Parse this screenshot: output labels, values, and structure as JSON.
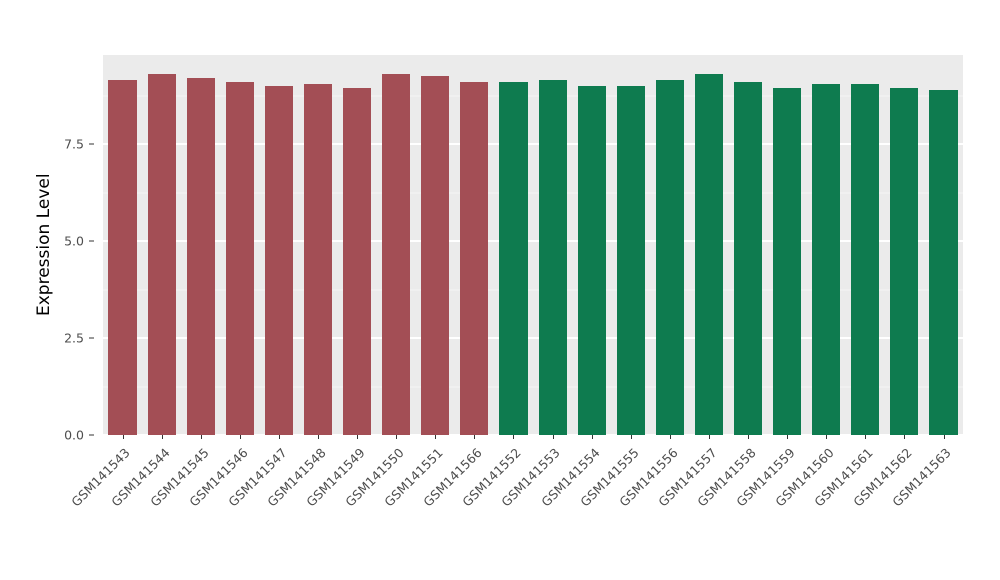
{
  "chart_data": {
    "type": "bar",
    "title": "",
    "xlabel": "",
    "ylabel": "Expression Level",
    "ylim": [
      0,
      9.8
    ],
    "yticks": [
      0.0,
      2.5,
      5.0,
      7.5
    ],
    "ytick_labels": [
      "0.0",
      "2.5",
      "5.0",
      "7.5"
    ],
    "minor_gridlines": [
      1.25,
      3.75,
      6.25,
      8.75
    ],
    "grid": "on",
    "legend": "none",
    "categories": [
      "GSM141543",
      "GSM141544",
      "GSM141545",
      "GSM141546",
      "GSM141547",
      "GSM141548",
      "GSM141549",
      "GSM141550",
      "GSM141551",
      "GSM141566",
      "GSM141552",
      "GSM141553",
      "GSM141554",
      "GSM141555",
      "GSM141556",
      "GSM141557",
      "GSM141558",
      "GSM141559",
      "GSM141560",
      "GSM141561",
      "GSM141562",
      "GSM141563"
    ],
    "values": [
      9.15,
      9.3,
      9.2,
      9.1,
      9.0,
      9.05,
      8.95,
      9.3,
      9.25,
      9.1,
      9.1,
      9.15,
      9.0,
      9.0,
      9.15,
      9.3,
      9.1,
      8.95,
      9.05,
      9.05,
      8.95,
      8.9
    ],
    "bar_groups": [
      "g1",
      "g1",
      "g1",
      "g1",
      "g1",
      "g1",
      "g1",
      "g1",
      "g1",
      "g1",
      "g2",
      "g2",
      "g2",
      "g2",
      "g2",
      "g2",
      "g2",
      "g2",
      "g2",
      "g2",
      "g2",
      "g2"
    ],
    "palette": {
      "g1": "#A34E55",
      "g2": "#0E7B4F"
    },
    "panel_background": "#EBEBEB",
    "gridline_color": "#FFFFFF",
    "tick_text_color": "#4d4d4d"
  }
}
